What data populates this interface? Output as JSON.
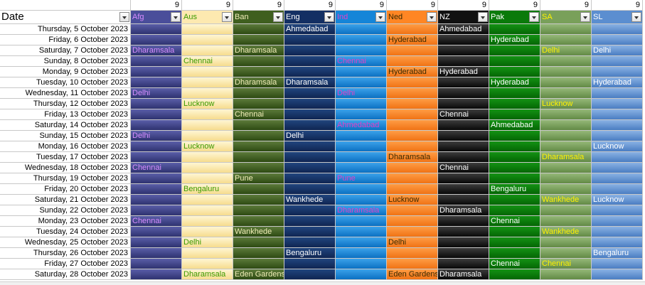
{
  "header": {
    "date_label": "Date",
    "count_value": "9",
    "teams": [
      {
        "name": "Afg",
        "bg": "#4a4e9a",
        "fg": "#d78cff",
        "cell_top": "#5a5ea8",
        "cell_bot": "#2e3270"
      },
      {
        "name": "Aus",
        "bg": "#fde9b0",
        "fg": "#3a9a00",
        "cell_top": "#fff6d4",
        "cell_bot": "#f6dc8e"
      },
      {
        "name": "Ban",
        "bg": "#3f5f1f",
        "fg": "#f2eeb8",
        "cell_top": "#5c7a3a",
        "cell_bot": "#2d4a12"
      },
      {
        "name": "Eng",
        "bg": "#132f63",
        "fg": "#ffffff",
        "cell_top": "#21457e",
        "cell_bot": "#0f2552"
      },
      {
        "name": "Ind",
        "bg": "#1585d8",
        "fg": "#e040c8",
        "cell_top": "#3ba2ea",
        "cell_bot": "#0b70c2"
      },
      {
        "name": "Ned",
        "bg": "#ff8624",
        "fg": "#3a2a00",
        "cell_top": "#ff9d45",
        "cell_bot": "#f07214"
      },
      {
        "name": "NZ",
        "bg": "#111111",
        "fg": "#ffffff",
        "cell_top": "#3c3c3c",
        "cell_bot": "#080808"
      },
      {
        "name": "Pak",
        "bg": "#0a7a0a",
        "fg": "#ffffff",
        "cell_top": "#149214",
        "cell_bot": "#046604"
      },
      {
        "name": "SA",
        "bg": "#79a05a",
        "fg": "#fff200",
        "cell_top": "#95b878",
        "cell_bot": "#628a45"
      },
      {
        "name": "SL",
        "bg": "#5b8ed0",
        "fg": "#ffffff",
        "cell_top": "#8ab2e4",
        "cell_bot": "#4a7dc2"
      }
    ]
  },
  "rows": [
    {
      "date": "Thursday, 5 October 2023",
      "cells": [
        "",
        "",
        "",
        "Ahmedabad",
        "",
        "",
        "Ahmedabad",
        "",
        "",
        ""
      ]
    },
    {
      "date": "Friday, 6 October 2023",
      "cells": [
        "",
        "",
        "",
        "",
        "",
        "Hyderabad",
        "",
        "Hyderabad",
        "",
        ""
      ]
    },
    {
      "date": "Saturday, 7 October 2023",
      "cells": [
        "Dharamsala",
        "",
        "Dharamsala",
        "",
        "",
        "",
        "",
        "",
        "Delhi",
        "Delhi"
      ]
    },
    {
      "date": "Sunday, 8 October 2023",
      "cells": [
        "",
        "Chennai",
        "",
        "",
        "Chennai",
        "",
        "",
        "",
        "",
        ""
      ]
    },
    {
      "date": "Monday, 9 October 2023",
      "cells": [
        "",
        "",
        "",
        "",
        "",
        "Hyderabad",
        "Hyderabad",
        "",
        "",
        ""
      ]
    },
    {
      "date": "Tuesday, 10 October 2023",
      "cells": [
        "",
        "",
        "Dharamsala",
        "Dharamsala",
        "",
        "",
        "",
        "Hyderabad",
        "",
        "Hyderabad"
      ]
    },
    {
      "date": "Wednesday, 11 October 2023",
      "cells": [
        "Delhi",
        "",
        "",
        "",
        "Delhi",
        "",
        "",
        "",
        "",
        ""
      ]
    },
    {
      "date": "Thursday, 12 October 2023",
      "cells": [
        "",
        "Lucknow",
        "",
        "",
        "",
        "",
        "",
        "",
        "Lucknow",
        ""
      ]
    },
    {
      "date": "Friday, 13 October 2023",
      "cells": [
        "",
        "",
        "Chennai",
        "",
        "",
        "",
        "Chennai",
        "",
        "",
        ""
      ]
    },
    {
      "date": "Saturday, 14 October 2023",
      "cells": [
        "",
        "",
        "",
        "",
        "Ahmedabad",
        "",
        "",
        "Ahmedabad",
        "",
        ""
      ]
    },
    {
      "date": "Sunday, 15 October 2023",
      "cells": [
        "Delhi",
        "",
        "",
        "Delhi",
        "",
        "",
        "",
        "",
        "",
        ""
      ]
    },
    {
      "date": "Monday, 16 October 2023",
      "cells": [
        "",
        "Lucknow",
        "",
        "",
        "",
        "",
        "",
        "",
        "",
        "Lucknow"
      ]
    },
    {
      "date": "Tuesday, 17 October 2023",
      "cells": [
        "",
        "",
        "",
        "",
        "",
        "Dharamsala",
        "",
        "",
        "Dharamsala",
        ""
      ]
    },
    {
      "date": "Wednesday, 18 October 2023",
      "cells": [
        "Chennai",
        "",
        "",
        "",
        "",
        "",
        "Chennai",
        "",
        "",
        ""
      ]
    },
    {
      "date": "Thursday, 19 October 2023",
      "cells": [
        "",
        "",
        "Pune",
        "",
        "Pune",
        "",
        "",
        "",
        "",
        ""
      ]
    },
    {
      "date": "Friday, 20 October 2023",
      "cells": [
        "",
        "Bengaluru",
        "",
        "",
        "",
        "",
        "",
        "Bengaluru",
        "",
        ""
      ]
    },
    {
      "date": "Saturday, 21 October 2023",
      "cells": [
        "",
        "",
        "",
        "Wankhede",
        "",
        "Lucknow",
        "",
        "",
        "Wankhede",
        "Lucknow"
      ]
    },
    {
      "date": "Sunday, 22 October 2023",
      "cells": [
        "",
        "",
        "",
        "",
        "Dharamsala",
        "",
        "Dharamsala",
        "",
        "",
        ""
      ]
    },
    {
      "date": "Monday, 23 October 2023",
      "cells": [
        "Chennai",
        "",
        "",
        "",
        "",
        "",
        "",
        "Chennai",
        "",
        ""
      ]
    },
    {
      "date": "Tuesday, 24 October 2023",
      "cells": [
        "",
        "",
        "Wankhede",
        "",
        "",
        "",
        "",
        "",
        "Wankhede",
        ""
      ]
    },
    {
      "date": "Wednesday, 25 October 2023",
      "cells": [
        "",
        "Delhi",
        "",
        "",
        "",
        "Delhi",
        "",
        "",
        "",
        ""
      ]
    },
    {
      "date": "Thursday, 26 October 2023",
      "cells": [
        "",
        "",
        "",
        "Bengaluru",
        "",
        "",
        "",
        "",
        "",
        "Bengaluru"
      ]
    },
    {
      "date": "Friday, 27 October 2023",
      "cells": [
        "",
        "",
        "",
        "",
        "",
        "",
        "",
        "Chennai",
        "Chennai",
        ""
      ]
    },
    {
      "date": "Saturday, 28 October 2023",
      "cells": [
        "",
        "Dharamsala",
        "Eden Gardens",
        "",
        "",
        "Eden Gardens",
        "Dharamsala",
        "",
        "",
        ""
      ]
    }
  ]
}
